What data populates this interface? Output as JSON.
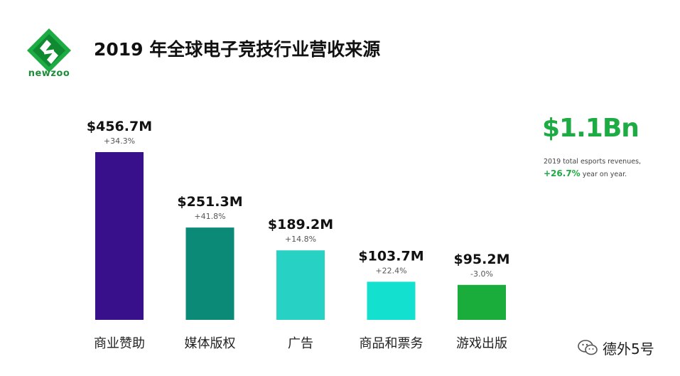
{
  "brand": {
    "name": "newzoo",
    "color": "#1dab43",
    "icon": "newzoo-logo-icon"
  },
  "title": "2019 年全球电子竞技行业营收来源",
  "summary": {
    "total": "$1.1Bn",
    "caption_text": "2019 total esports revenues,",
    "growth": "+26.7%",
    "growth_suffix": " year on year."
  },
  "watermark": {
    "icon": "wechat-icon",
    "text": "德外5号"
  },
  "chart_data": {
    "type": "bar",
    "title": "2019 年全球电子竞技行业营收来源",
    "xlabel": "",
    "ylabel": "",
    "unit": "$M",
    "ylim": [
      0,
      456.7
    ],
    "grid": false,
    "categories": [
      "商业赞助",
      "媒体版权",
      "广告",
      "商品和票务",
      "游戏出版"
    ],
    "values": [
      456.7,
      251.3,
      189.2,
      103.7,
      95.2
    ],
    "value_labels": [
      "$456.7M",
      "$251.3M",
      "$189.2M",
      "$103.7M",
      "$95.2M"
    ],
    "growth_labels": [
      "+34.3%",
      "+41.8%",
      "+14.8%",
      "+22.4%",
      "-3.0%"
    ],
    "colors": [
      "#38108c",
      "#0b8a78",
      "#27d1c4",
      "#14e0d0",
      "#1aad3c"
    ]
  }
}
